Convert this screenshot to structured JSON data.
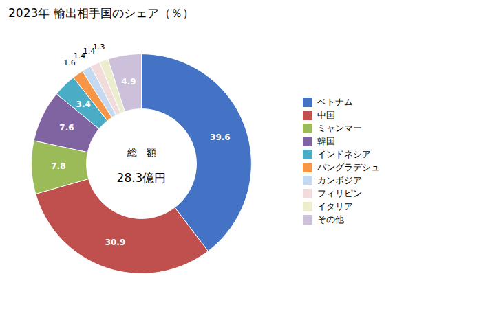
{
  "chart_data": {
    "type": "pie",
    "title": "2023年 輸出相手国のシェア（％）",
    "categories": [
      "ベトナム",
      "中国",
      "ミャンマー",
      "韓国",
      "インドネシア",
      "バングラデシュ",
      "カンボジア",
      "フィリピン",
      "イタリア",
      "その他"
    ],
    "values": [
      39.6,
      30.9,
      7.8,
      7.6,
      3.4,
      1.6,
      1.4,
      1.4,
      1.3,
      4.9
    ],
    "colors": [
      "#4472C4",
      "#C0504D",
      "#9BBB59",
      "#8064A2",
      "#4BACC6",
      "#F79646",
      "#C5D9F1",
      "#F2DCDB",
      "#EBEDCC",
      "#CCC0DA"
    ],
    "annotations": [
      "総　額",
      "28.3億円"
    ],
    "data_labels": true,
    "legend": "right"
  }
}
